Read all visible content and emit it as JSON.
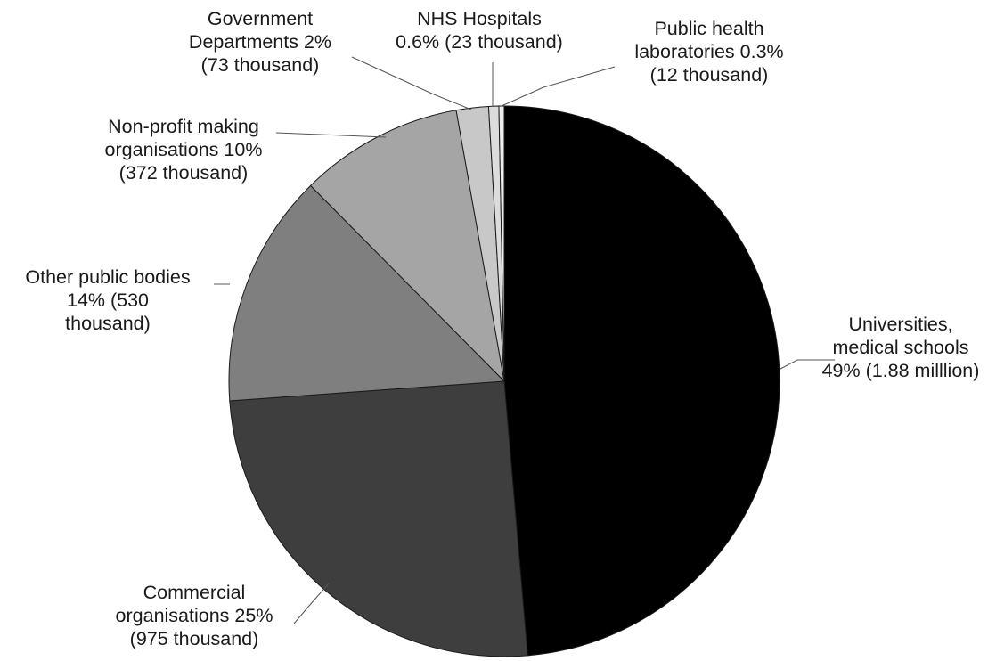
{
  "chart_data": {
    "type": "pie",
    "title": "",
    "slices": [
      {
        "name": "Universities, medical schools",
        "value": 1880,
        "percent_label": "49%",
        "amount_label": "1.88 milllion",
        "color": "#000000",
        "label_lines": [
          "Universities,",
          "medical schools",
          "49% (1.88 milllion)"
        ]
      },
      {
        "name": "Commercial organisations",
        "value": 975,
        "percent_label": "25%",
        "amount_label": "975 thousand",
        "color": "#3e3e3e",
        "label_lines": [
          "Commercial",
          "organisations 25%",
          "(975 thousand)"
        ]
      },
      {
        "name": "Other public bodies",
        "value": 530,
        "percent_label": "14%",
        "amount_label": "530 thousand",
        "color": "#7f7f7f",
        "label_lines": [
          "Other public bodies",
          "14% (530",
          "thousand)"
        ]
      },
      {
        "name": "Non-profit making organisations",
        "value": 372,
        "percent_label": "10%",
        "amount_label": "372 thousand",
        "color": "#a5a5a5",
        "label_lines": [
          "Non-profit making",
          "organisations 10%",
          "(372 thousand)"
        ]
      },
      {
        "name": "Government Departments",
        "value": 73,
        "percent_label": "2%",
        "amount_label": "73 thousand",
        "color": "#c8c8c8",
        "label_lines": [
          "Government",
          "Departments 2%",
          "(73 thousand)"
        ]
      },
      {
        "name": "NHS Hospitals",
        "value": 23,
        "percent_label": "0.6%",
        "amount_label": "23 thousand",
        "color": "#dcdcdc",
        "label_lines": [
          "NHS Hospitals",
          "0.6% (23 thousand)"
        ]
      },
      {
        "name": "Public health laboratories",
        "value": 12,
        "percent_label": "0.3%",
        "amount_label": "12 thousand",
        "color": "#ededed",
        "label_lines": [
          "Public health",
          "laboratories 0.3%",
          "(12 thousand)"
        ]
      }
    ],
    "start_angle": "12 o'clock",
    "direction": "clockwise",
    "legend": "none"
  }
}
